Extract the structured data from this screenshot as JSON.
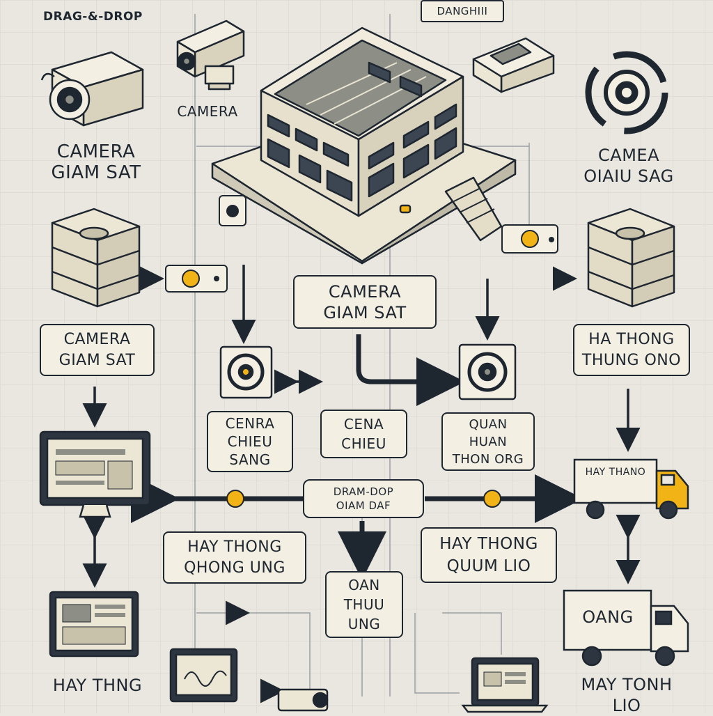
{
  "header": {
    "title": "DRAG-&-DROP",
    "tag": "DANGHIII"
  },
  "top_labels": {
    "camera_small": "CAMERA",
    "left_camera_line1": "CAMERA",
    "left_camera_line2": "GIAM SAT",
    "right_camera_line1": "CAMEA",
    "right_camera_line2": "OIAIU SAG"
  },
  "boxes": {
    "left_camera_line1": "CAMERA",
    "left_camera_line2": "GIAM SAT",
    "center_camera_line1": "CAMERA",
    "center_camera_line2": "GIAM SAT",
    "right_system_line1": "HA THONG",
    "right_system_line2": "THUNG ONO",
    "cenra_line1": "CENRA",
    "cenra_line2": "CHIEU",
    "cenra_line3": "SANG",
    "cena_line1": "CENA",
    "cena_line2": "CHIEU",
    "quan_line1": "QUAN",
    "quan_line2": "HUAN",
    "quan_line3": "THON ORG",
    "hub_line1": "DRAM-DOP",
    "hub_line2": "OIAM DAF",
    "left_hay_line1": "HAY THONG",
    "left_hay_line2": "QHONG UNG",
    "right_hay_line1": "HAY THONG",
    "right_hay_line2": "QUUM LIO",
    "oan_line1": "OAN",
    "oan_line2": "THUU",
    "oan_line3": "UNG"
  },
  "bottom_labels": {
    "left": "HAY THNG",
    "truck_top": "HAY THANO",
    "truck_bottom": "OANG",
    "right_line1": "MAY TONH",
    "right_line2": "LIO"
  },
  "colors": {
    "background": "#e9e7df",
    "ink": "#1e2630",
    "card": "#f3efe2",
    "accent": "#f2b316"
  }
}
